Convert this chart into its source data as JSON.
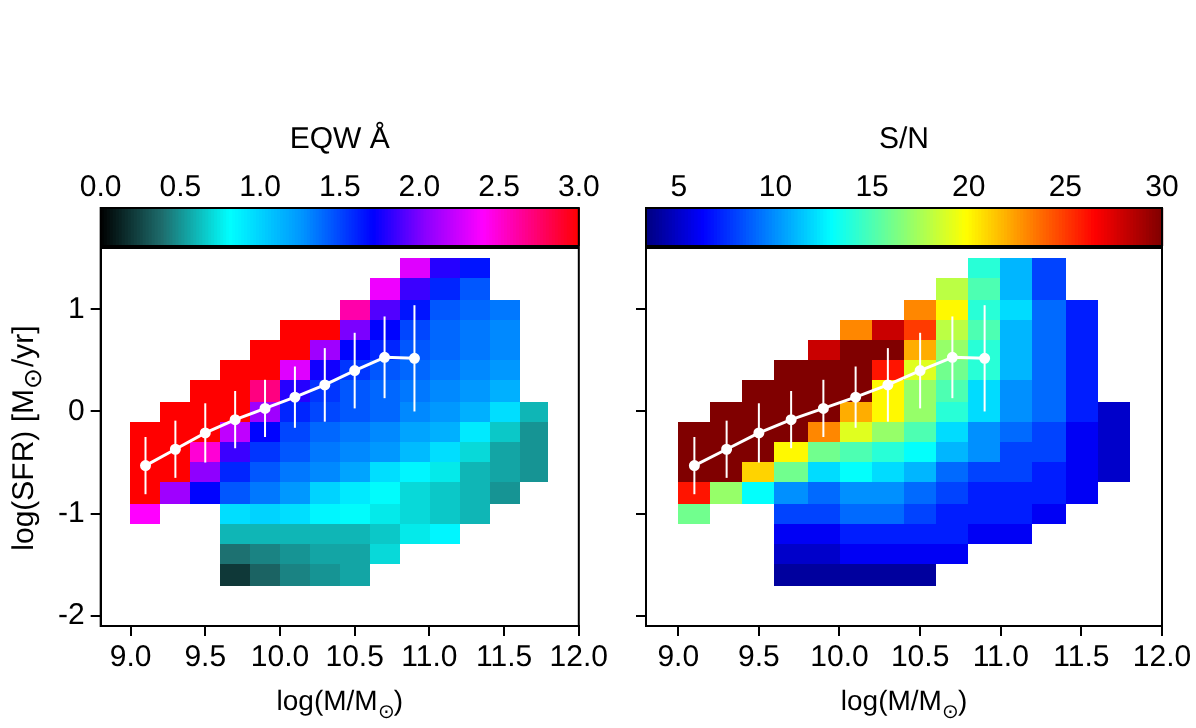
{
  "chart_data": [
    {
      "type": "heatmap",
      "title": "EQW Å",
      "xlabel": "log(M/M$_{⊙}$)",
      "ylabel": "log(SFR) [M$_{⊙}$/yr]",
      "x": [
        9.1,
        9.3,
        9.5,
        9.7,
        9.9,
        10.1,
        10.3,
        10.5,
        10.7,
        10.9,
        11.1,
        11.3,
        11.5,
        11.7
      ],
      "y": [
        1.4,
        1.2,
        1.0,
        0.8,
        0.6,
        0.4,
        0.2,
        0.0,
        -0.2,
        -0.4,
        -0.6,
        -0.8,
        -1.0,
        -1.2,
        -1.4,
        -1.6
      ],
      "cells": [
        [
          null,
          null,
          null,
          null,
          null,
          null,
          null,
          null,
          null,
          2.3,
          1.8,
          1.65,
          null,
          null
        ],
        [
          null,
          null,
          null,
          null,
          null,
          null,
          null,
          null,
          2.35,
          1.85,
          1.6,
          1.45,
          null,
          null
        ],
        [
          null,
          null,
          null,
          null,
          null,
          null,
          null,
          2.6,
          1.9,
          1.65,
          1.45,
          1.4,
          1.35,
          null
        ],
        [
          null,
          null,
          null,
          null,
          null,
          3.0,
          3.0,
          2.0,
          1.7,
          1.5,
          1.4,
          1.35,
          1.3,
          null
        ],
        [
          null,
          null,
          null,
          null,
          3.0,
          3.0,
          2.1,
          1.7,
          1.6,
          1.45,
          1.4,
          1.35,
          1.3,
          null
        ],
        [
          null,
          null,
          null,
          3.0,
          3.0,
          2.3,
          1.75,
          1.55,
          1.45,
          1.4,
          1.35,
          1.3,
          1.25,
          null
        ],
        [
          null,
          null,
          3.0,
          3.0,
          2.7,
          1.8,
          1.55,
          1.45,
          1.4,
          1.35,
          1.3,
          1.25,
          1.15,
          null
        ],
        [
          null,
          3.0,
          3.0,
          3.0,
          2.1,
          1.6,
          1.5,
          1.45,
          1.4,
          1.3,
          1.25,
          1.15,
          0.95,
          0.6
        ],
        [
          3.0,
          3.0,
          3.0,
          2.2,
          1.7,
          1.5,
          1.4,
          1.35,
          1.3,
          1.2,
          1.15,
          0.9,
          0.65,
          0.5
        ],
        [
          3.0,
          3.0,
          2.5,
          1.85,
          1.55,
          1.45,
          1.35,
          1.3,
          1.25,
          1.1,
          0.95,
          0.7,
          0.55,
          0.5
        ],
        [
          3.0,
          3.0,
          2.05,
          1.6,
          1.45,
          1.35,
          1.3,
          1.2,
          0.95,
          0.85,
          0.75,
          0.6,
          0.55,
          0.5
        ],
        [
          3.0,
          2.1,
          1.7,
          1.45,
          1.35,
          1.25,
          1.0,
          0.9,
          0.8,
          0.7,
          0.65,
          0.6,
          0.5,
          null
        ],
        [
          2.4,
          null,
          null,
          0.95,
          1.0,
          0.95,
          0.85,
          0.8,
          0.75,
          0.7,
          0.65,
          0.6,
          null,
          null
        ],
        [
          null,
          null,
          null,
          0.6,
          0.6,
          0.6,
          0.6,
          0.6,
          0.65,
          0.75,
          0.85,
          null,
          null,
          null
        ],
        [
          null,
          null,
          null,
          0.4,
          0.45,
          0.5,
          0.55,
          0.55,
          0.7,
          null,
          null,
          null,
          null,
          null
        ],
        [
          null,
          null,
          null,
          0.2,
          0.35,
          0.45,
          0.5,
          0.55,
          null,
          null,
          null,
          null,
          null,
          null
        ]
      ],
      "clim": [
        0,
        3
      ],
      "cticks": [
        {
          "value": 0,
          "label": "0.0"
        },
        {
          "value": 0.5,
          "label": "0.5"
        },
        {
          "value": 1,
          "label": "1.0"
        },
        {
          "value": 1.5,
          "label": "1.5"
        },
        {
          "value": 2,
          "label": "2.0"
        },
        {
          "value": 2.5,
          "label": "2.5"
        },
        {
          "value": 3,
          "label": "3.0"
        }
      ],
      "series": [
        {
          "type": "line",
          "color": "#ffffff",
          "x": [
            9.1,
            9.3,
            9.5,
            9.7,
            9.9,
            10.1,
            10.3,
            10.5,
            10.7,
            10.9
          ],
          "values": [
            -0.53,
            -0.37,
            -0.21,
            -0.08,
            0.03,
            0.14,
            0.26,
            0.4,
            0.53,
            0.52
          ],
          "errors": [
            0.28,
            0.28,
            0.29,
            0.28,
            0.28,
            0.3,
            0.36,
            0.37,
            0.4,
            0.52
          ]
        }
      ],
      "marker": "circle",
      "xlim": [
        8.8,
        12.0
      ],
      "xticks": [
        {
          "value": 9,
          "label": "9.0"
        },
        {
          "value": 9.5,
          "label": "9.5"
        },
        {
          "value": 10,
          "label": "10.0"
        },
        {
          "value": 10.5,
          "label": "10.5"
        },
        {
          "value": 11,
          "label": "11.0"
        },
        {
          "value": 11.5,
          "label": "11.5"
        },
        {
          "value": 12,
          "label": "12.0"
        }
      ],
      "ylim": [
        -2.1,
        1.6
      ],
      "yticks": [
        -2,
        -1,
        0,
        1
      ]
    },
    {
      "type": "heatmap",
      "title": "S/N",
      "xlabel": "log(M/M$_{⊙}$)",
      "x": [
        9.1,
        9.3,
        9.5,
        9.7,
        9.9,
        10.1,
        10.3,
        10.5,
        10.7,
        10.9,
        11.1,
        11.3,
        11.5,
        11.7
      ],
      "y": [
        1.4,
        1.2,
        1.0,
        0.8,
        0.6,
        0.4,
        0.2,
        0.0,
        -0.2,
        -0.4,
        -0.6,
        -0.8,
        -1.0,
        -1.2,
        -1.4,
        -1.6
      ],
      "cells": [
        [
          null,
          null,
          null,
          null,
          null,
          null,
          null,
          null,
          null,
          14,
          11,
          8,
          null,
          null
        ],
        [
          null,
          null,
          null,
          null,
          null,
          null,
          null,
          null,
          18,
          15,
          11,
          8,
          null,
          null
        ],
        [
          null,
          null,
          null,
          null,
          null,
          null,
          null,
          23,
          20,
          14,
          12,
          9,
          7,
          null
        ],
        [
          null,
          null,
          null,
          null,
          null,
          23,
          28,
          25,
          18,
          15,
          11,
          9,
          7,
          null
        ],
        [
          null,
          null,
          null,
          null,
          28,
          30,
          30,
          22,
          17,
          14,
          11,
          9,
          7,
          null
        ],
        [
          null,
          null,
          null,
          30,
          30,
          30,
          26,
          19,
          16,
          14,
          11,
          9,
          7,
          null
        ],
        [
          null,
          null,
          30,
          30,
          30,
          30,
          20,
          17,
          15,
          12,
          10,
          9,
          7,
          null
        ],
        [
          null,
          30,
          30,
          30,
          30,
          22,
          20,
          17,
          14,
          12,
          10,
          9,
          7,
          5
        ],
        [
          30,
          30,
          30,
          30,
          23,
          19,
          17,
          15,
          12,
          10,
          9,
          8,
          6,
          5
        ],
        [
          30,
          30,
          30,
          20,
          16,
          15,
          14,
          13,
          11,
          10,
          8,
          8,
          6,
          5
        ],
        [
          30,
          30,
          21,
          16,
          12,
          13,
          12,
          11,
          9,
          8,
          8,
          7,
          6,
          5
        ],
        [
          26,
          17,
          13,
          10,
          9,
          10,
          10,
          9,
          8,
          7,
          7,
          7,
          6,
          null
        ],
        [
          16,
          null,
          null,
          8,
          8,
          9,
          9,
          8,
          7,
          7,
          7,
          6,
          null,
          null
        ],
        [
          null,
          null,
          null,
          6,
          6,
          7,
          7,
          7,
          7,
          6,
          6,
          null,
          null,
          null
        ],
        [
          null,
          null,
          null,
          5,
          5,
          6,
          6,
          6,
          6,
          null,
          null,
          null,
          null,
          null
        ],
        [
          null,
          null,
          null,
          4,
          4,
          4,
          4,
          4,
          null,
          null,
          null,
          null,
          null,
          null
        ]
      ],
      "clim": [
        3.3,
        30
      ],
      "cticks": [
        5,
        10,
        15,
        20,
        25,
        30
      ],
      "series": [
        {
          "type": "line",
          "color": "#ffffff",
          "x": [
            9.1,
            9.3,
            9.5,
            9.7,
            9.9,
            10.1,
            10.3,
            10.5,
            10.7,
            10.9
          ],
          "values": [
            -0.53,
            -0.37,
            -0.21,
            -0.08,
            0.03,
            0.14,
            0.26,
            0.4,
            0.53,
            0.52
          ],
          "errors": [
            0.28,
            0.28,
            0.29,
            0.28,
            0.28,
            0.3,
            0.36,
            0.37,
            0.4,
            0.52
          ]
        }
      ],
      "marker": "circle",
      "xlim": [
        8.8,
        12.0
      ],
      "xticks": [
        {
          "value": 9,
          "label": "9.0"
        },
        {
          "value": 9.5,
          "label": "9.5"
        },
        {
          "value": 10,
          "label": "10.0"
        },
        {
          "value": 10.5,
          "label": "10.5"
        },
        {
          "value": 11,
          "label": "11.0"
        },
        {
          "value": 11.5,
          "label": "11.5"
        },
        {
          "value": 12,
          "label": "12.0"
        }
      ],
      "ylim": [
        -2.1,
        1.6
      ],
      "yticks": [
        -2,
        -1,
        0,
        1
      ],
      "tick_labels": "x"
    }
  ]
}
